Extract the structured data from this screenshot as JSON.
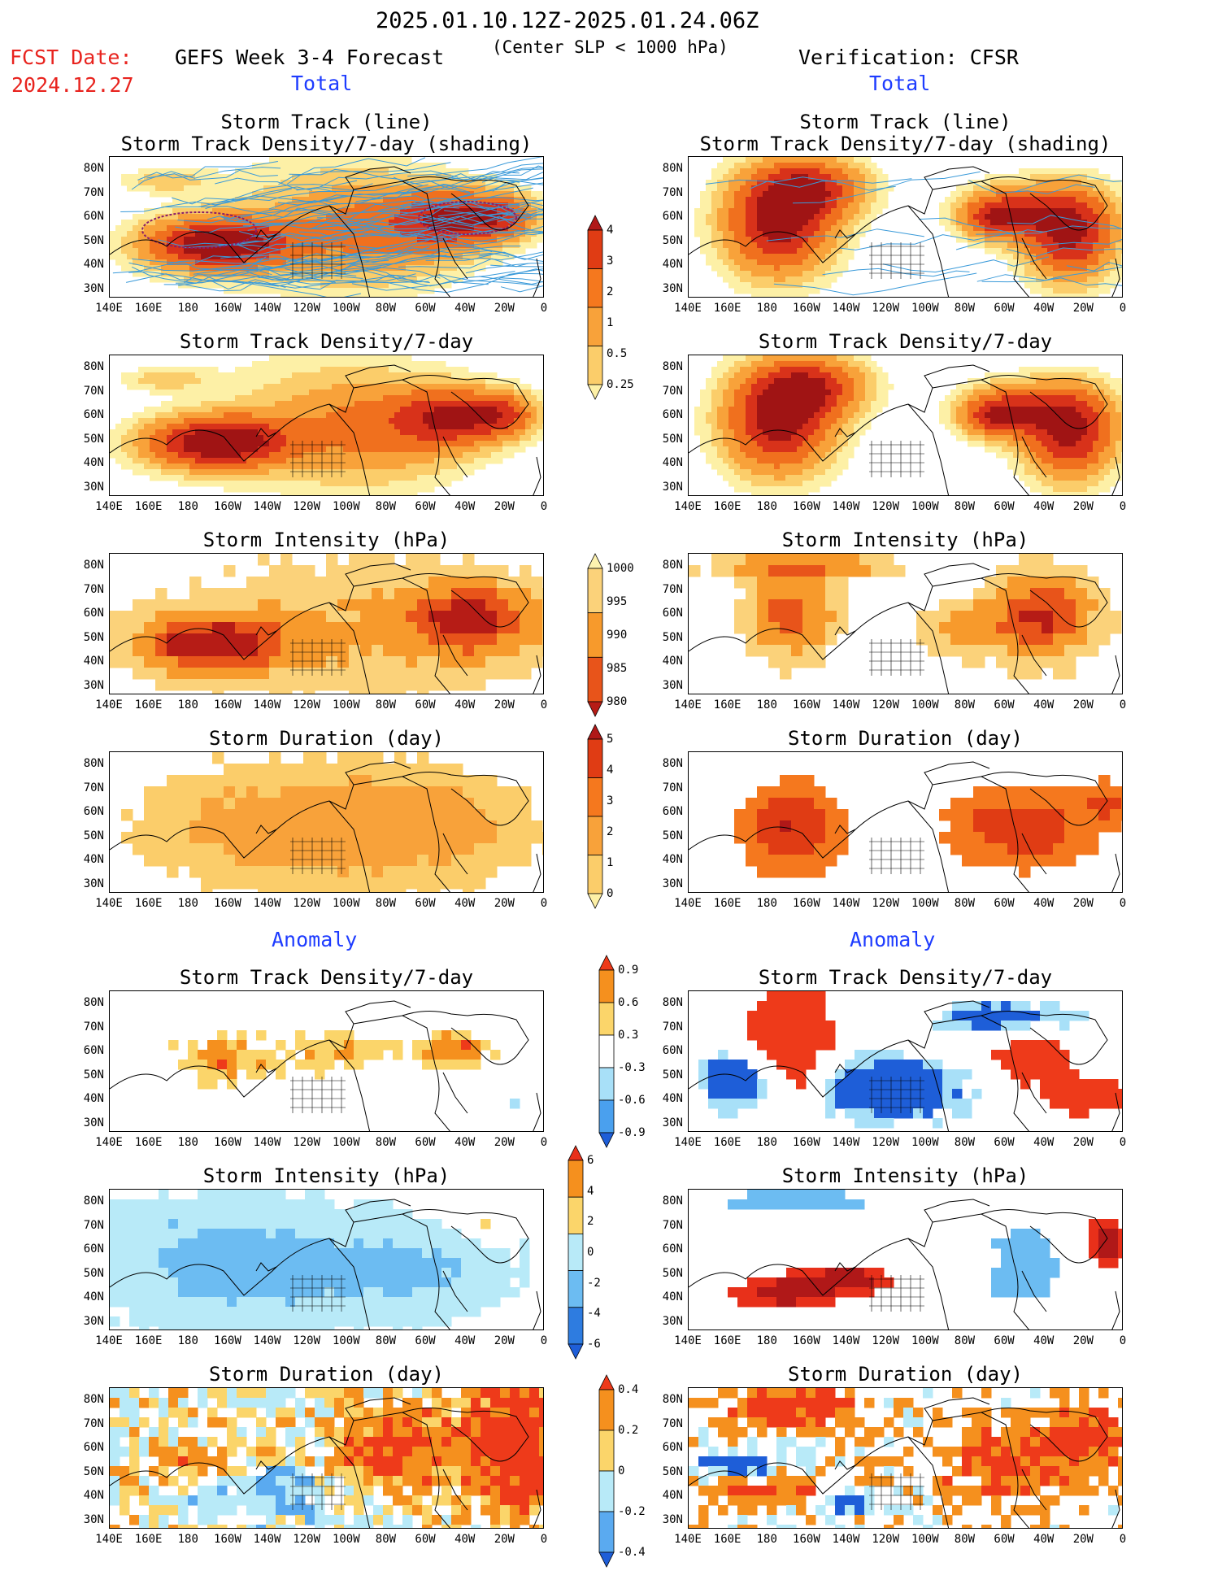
{
  "header": {
    "date_range": "2025.01.10.12Z-2025.01.24.06Z",
    "fcst_label": "FCST Date:",
    "fcst_date": "2024.12.27",
    "left_title": "GEFS Week 3-4 Forecast",
    "center_note": "(Center SLP < 1000 hPa)",
    "right_title": "Verification: CFSR"
  },
  "sections": {
    "total": "Total",
    "anomaly": "Anomaly"
  },
  "axes": {
    "lat_labels": [
      "80N",
      "70N",
      "60N",
      "50N",
      "40N",
      "30N"
    ],
    "lon_labels": [
      "140E",
      "160E",
      "180",
      "160W",
      "140W",
      "120W",
      "100W",
      "80W",
      "60W",
      "40W",
      "20W",
      "0"
    ]
  },
  "panels": {
    "total_track": {
      "title1": "Storm Track (line)",
      "title2": "Storm Track Density/7-day (shading)"
    },
    "total_density": {
      "title1": "Storm Track Density/7-day"
    },
    "total_intensity": {
      "title1": "Storm Intensity (hPa)"
    },
    "total_duration": {
      "title1": "Storm Duration (day)"
    },
    "anom_density": {
      "title1": "Storm Track Density/7-day"
    },
    "anom_intensity": {
      "title1": "Storm Intensity (hPa)"
    },
    "anom_duration": {
      "title1": "Storm Duration (day)"
    }
  },
  "colorbars": {
    "density": {
      "labels": [
        "4",
        "3",
        "2",
        "1",
        "0.5",
        "0.25"
      ],
      "colors": [
        "#b01818",
        "#e03c14",
        "#f5781e",
        "#f8a23a",
        "#fbcd6a",
        "#fdf0a6"
      ]
    },
    "intensity": {
      "labels": [
        "1000",
        "995",
        "990",
        "985",
        "980"
      ],
      "colors": [
        "#fdf2b0",
        "#fbd27a",
        "#f79a2c",
        "#e8541a",
        "#b61c16"
      ]
    },
    "duration": {
      "labels": [
        "5",
        "4",
        "3",
        "2",
        "1",
        "0"
      ],
      "colors": [
        "#b01818",
        "#e03c14",
        "#f5781e",
        "#f8a23a",
        "#fbcd6a",
        "#fdf0a6"
      ]
    },
    "anom_density": {
      "labels": [
        "0.9",
        "0.6",
        "0.3",
        "-0.3",
        "-0.6",
        "-0.9"
      ],
      "colors": [
        "#ee3a1a",
        "#f5901e",
        "#fbd56a",
        "#ffffff",
        "#a8e0f8",
        "#4aa0ee",
        "#1e5ed8"
      ]
    },
    "anom_intensity": {
      "labels": [
        "6",
        "4",
        "2",
        "0",
        "-2",
        "-4",
        "-6"
      ],
      "colors": [
        "#e8301a",
        "#f5901e",
        "#fbd56a",
        "#b8eaf8",
        "#6cbcf2",
        "#2e7ce0",
        "#1e5ed8"
      ]
    },
    "anom_duration": {
      "labels": [
        "0.4",
        "0.2",
        "0",
        "-0.2",
        "-0.4"
      ],
      "colors": [
        "#ee3a1a",
        "#f5901e",
        "#fbd56a",
        "#b8eaf8",
        "#5aaaf0",
        "#1e5ed8"
      ]
    }
  },
  "palette": {
    "title_red": "#e8231e",
    "section_blue": "#1e3cff",
    "track_line": "#3a9ad9"
  }
}
